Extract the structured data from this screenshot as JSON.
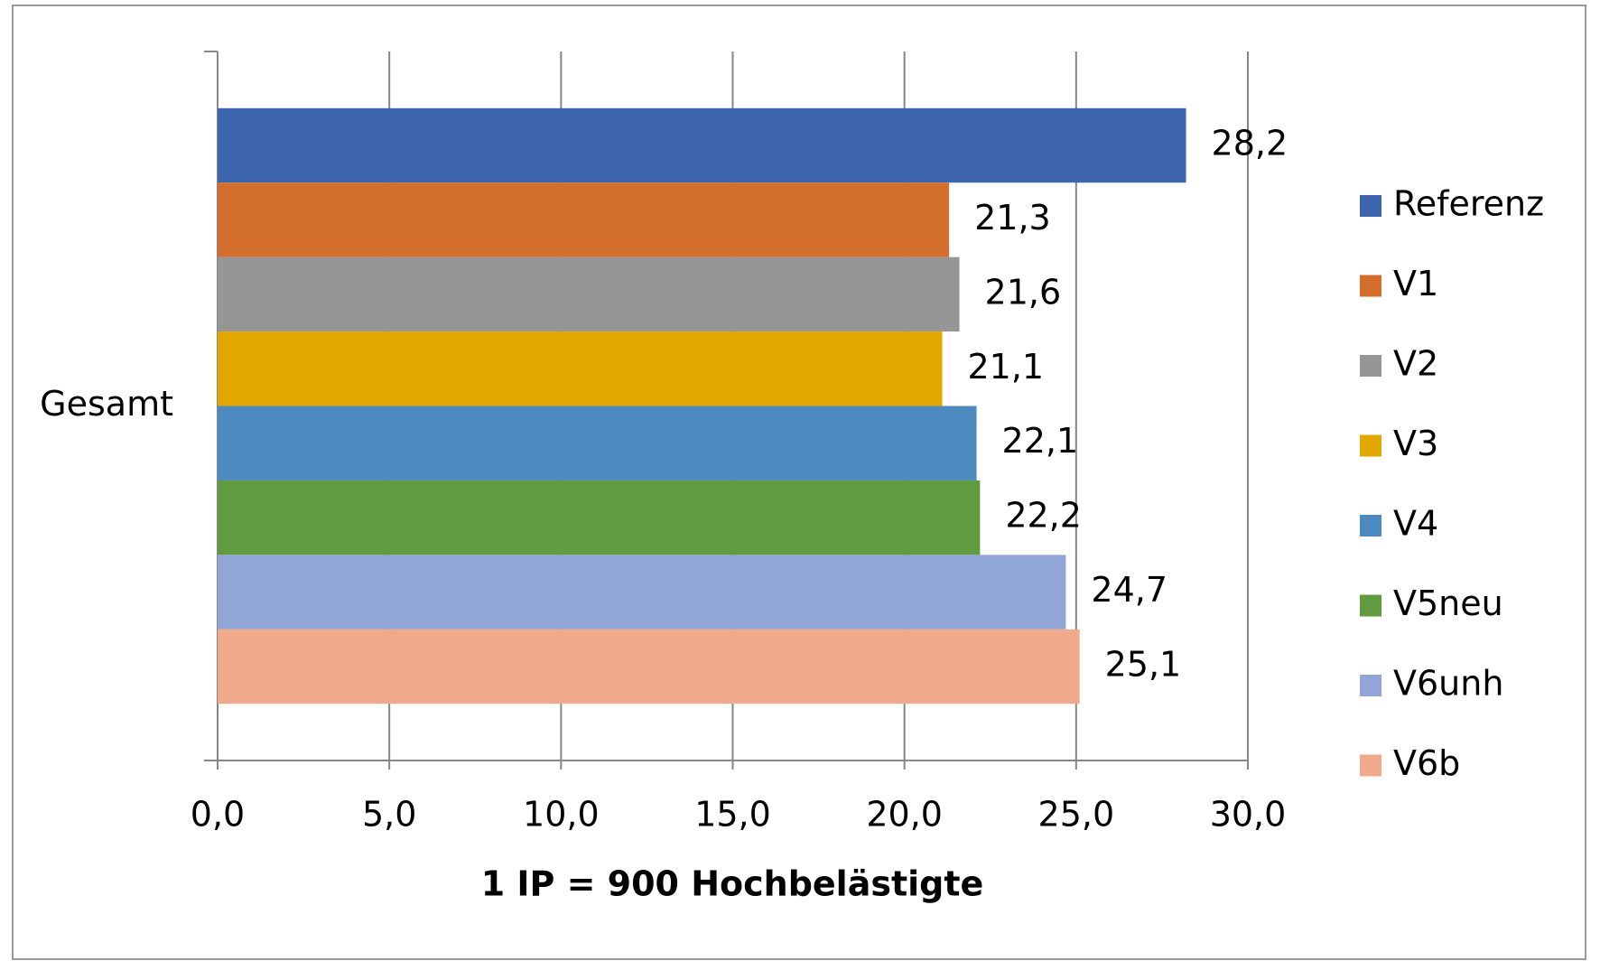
{
  "chart_data": {
    "type": "hbar",
    "categories": [
      "Gesamt"
    ],
    "series": [
      {
        "name": "Referenz",
        "color": "#3c65ae",
        "values": [
          28.2
        ],
        "value_labels": [
          "28,2"
        ]
      },
      {
        "name": "V1",
        "color": "#d36e2c",
        "values": [
          21.3
        ],
        "value_labels": [
          "21,3"
        ]
      },
      {
        "name": "V2",
        "color": "#969696",
        "values": [
          21.6
        ],
        "value_labels": [
          "21,6"
        ]
      },
      {
        "name": "V3",
        "color": "#e3a800",
        "values": [
          21.1
        ],
        "value_labels": [
          "21,1"
        ]
      },
      {
        "name": "V4",
        "color": "#4d8abf",
        "values": [
          22.1
        ],
        "value_labels": [
          "22,1"
        ]
      },
      {
        "name": "V5neu",
        "color": "#609b3f",
        "values": [
          22.2
        ],
        "value_labels": [
          "22,2"
        ]
      },
      {
        "name": "V6unh",
        "color": "#91a5d6",
        "values": [
          24.7
        ],
        "value_labels": [
          "24,7"
        ]
      },
      {
        "name": "V6b",
        "color": "#f1a98c",
        "values": [
          25.1
        ],
        "value_labels": [
          "25,1"
        ]
      }
    ],
    "xlabel": "1 IP = 900 Hochbelästigte",
    "xlim": [
      0,
      30
    ],
    "xticks": [
      {
        "value": 0,
        "label": "0,0"
      },
      {
        "value": 5,
        "label": "5,0"
      },
      {
        "value": 10,
        "label": "10,0"
      },
      {
        "value": 15,
        "label": "15,0"
      },
      {
        "value": 20,
        "label": "20,0"
      },
      {
        "value": 25,
        "label": "25,0"
      },
      {
        "value": 30,
        "label": "30,0"
      }
    ],
    "grid": true,
    "legend": "right"
  }
}
